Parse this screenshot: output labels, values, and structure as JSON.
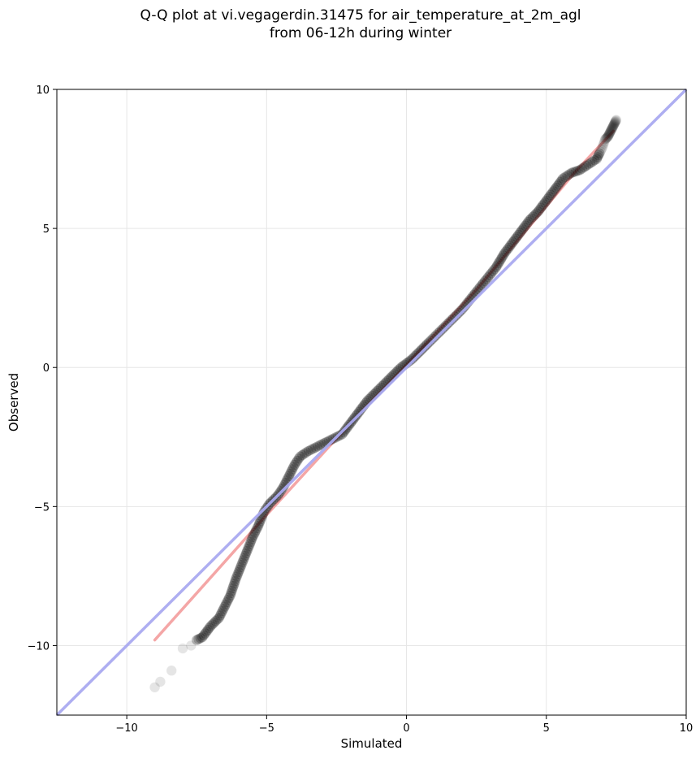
{
  "title": {
    "line1": "Q-Q plot at vi.vegagerdin.31475 for air_temperature_at_2m_agl",
    "line2": "from 06-12h during winter"
  },
  "chart_data": {
    "type": "scatter",
    "title": "Q-Q plot at vi.vegagerdin.31475 for air_temperature_at_2m_agl from 06-12h during winter",
    "xlabel": "Simulated",
    "ylabel": "Observed",
    "xlim": [
      -12.5,
      10
    ],
    "ylim": [
      -12.5,
      10
    ],
    "xticks": [
      -10,
      -5,
      0,
      5,
      10
    ],
    "yticks": [
      -10,
      -5,
      0,
      5,
      10
    ],
    "xtick_labels": [
      "−10",
      "−5",
      "0",
      "5",
      "10"
    ],
    "ytick_labels": [
      "−10",
      "−5",
      "0",
      "5",
      "10"
    ],
    "grid": true,
    "reference_line": {
      "color": "#aaaaf0",
      "points": [
        [
          -12.5,
          -12.5
        ],
        [
          10,
          10
        ]
      ]
    },
    "fit_line": {
      "color": "#f4a6a6",
      "points": [
        [
          -9.0,
          -9.8
        ],
        [
          -5.0,
          -5.3
        ],
        [
          -2.0,
          -2.0
        ],
        [
          0.0,
          0.1
        ],
        [
          2.5,
          2.8
        ],
        [
          4.5,
          5.2
        ],
        [
          6.0,
          7.0
        ],
        [
          7.4,
          8.5
        ]
      ]
    },
    "quantile_curve": [
      [
        -9.0,
        -11.5
      ],
      [
        -8.8,
        -11.3
      ],
      [
        -8.4,
        -10.9
      ],
      [
        -8.0,
        -10.1
      ],
      [
        -7.7,
        -10.0
      ],
      [
        -7.5,
        -9.8
      ],
      [
        -7.3,
        -9.7
      ],
      [
        -7.0,
        -9.3
      ],
      [
        -6.7,
        -9.0
      ],
      [
        -6.5,
        -8.6
      ],
      [
        -6.3,
        -8.2
      ],
      [
        -6.1,
        -7.6
      ],
      [
        -5.9,
        -7.1
      ],
      [
        -5.7,
        -6.6
      ],
      [
        -5.5,
        -6.1
      ],
      [
        -5.3,
        -5.7
      ],
      [
        -5.1,
        -5.2
      ],
      [
        -4.9,
        -4.9
      ],
      [
        -4.6,
        -4.6
      ],
      [
        -4.4,
        -4.3
      ],
      [
        -4.2,
        -3.9
      ],
      [
        -4.0,
        -3.5
      ],
      [
        -3.8,
        -3.2
      ],
      [
        -3.5,
        -3.0
      ],
      [
        -3.1,
        -2.8
      ],
      [
        -2.7,
        -2.6
      ],
      [
        -2.3,
        -2.4
      ],
      [
        -2.0,
        -2.0
      ],
      [
        -1.7,
        -1.6
      ],
      [
        -1.4,
        -1.2
      ],
      [
        -1.1,
        -0.9
      ],
      [
        -0.8,
        -0.6
      ],
      [
        -0.5,
        -0.3
      ],
      [
        -0.2,
        0.0
      ],
      [
        0.2,
        0.3
      ],
      [
        0.5,
        0.6
      ],
      [
        0.8,
        0.9
      ],
      [
        1.2,
        1.3
      ],
      [
        1.6,
        1.7
      ],
      [
        2.0,
        2.1
      ],
      [
        2.4,
        2.6
      ],
      [
        2.8,
        3.1
      ],
      [
        3.2,
        3.6
      ],
      [
        3.5,
        4.1
      ],
      [
        3.8,
        4.5
      ],
      [
        4.1,
        4.9
      ],
      [
        4.4,
        5.3
      ],
      [
        4.7,
        5.6
      ],
      [
        5.0,
        6.0
      ],
      [
        5.3,
        6.4
      ],
      [
        5.6,
        6.8
      ],
      [
        5.9,
        7.0
      ],
      [
        6.2,
        7.1
      ],
      [
        6.5,
        7.3
      ],
      [
        6.8,
        7.5
      ],
      [
        6.9,
        7.7
      ],
      [
        7.0,
        7.9
      ],
      [
        7.1,
        8.2
      ],
      [
        7.2,
        8.3
      ],
      [
        7.3,
        8.5
      ],
      [
        7.4,
        8.7
      ],
      [
        7.5,
        8.9
      ]
    ],
    "point_color": "#000000",
    "blend_color": "#00008b"
  }
}
